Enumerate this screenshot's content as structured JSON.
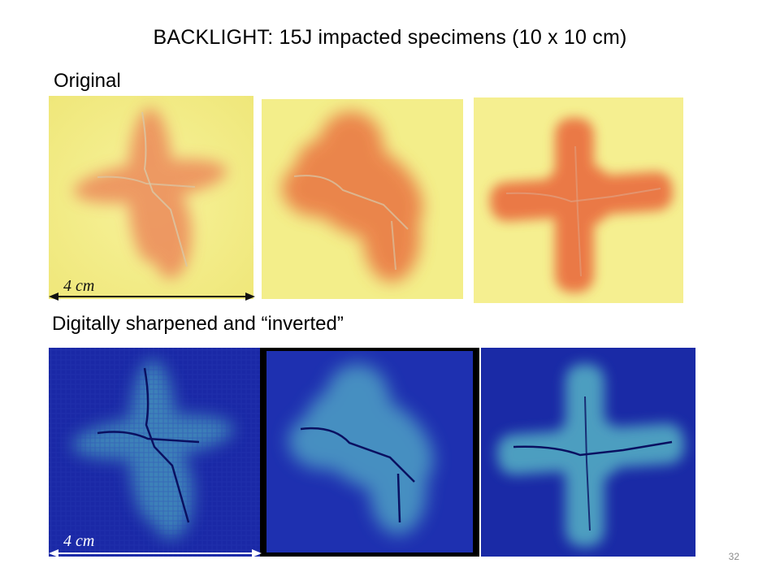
{
  "slide": {
    "title": "BACKLIGHT: 15J impacted specimens (10 x 10 cm)",
    "page_number": "32"
  },
  "sections": {
    "original_label": "Original",
    "inverted_label": "Digitally sharpened and “inverted”"
  },
  "scale_bar": {
    "label": "4 cm"
  },
  "colors": {
    "original_background": "#f5f08a",
    "original_damage": "#e8784a",
    "inverted_background": "#1a2aa0",
    "inverted_damage": "#5ab8c8"
  }
}
